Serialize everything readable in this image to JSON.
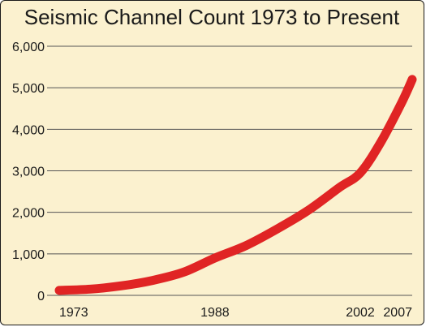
{
  "chart_data": {
    "type": "line",
    "title": "Seismic Channel Count 1973 to Present",
    "xlabel": "",
    "ylabel": "",
    "xlim": [
      1973,
      2007
    ],
    "ylim": [
      0,
      6000
    ],
    "x_ticks": [
      "1973",
      "1988",
      "2002",
      "2007"
    ],
    "y_ticks": [
      "0",
      "1,000",
      "2,000",
      "3,000",
      "4,000",
      "5,000",
      "6,000"
    ],
    "grid": "horizontal",
    "legend": "none",
    "series": [
      {
        "x": [
          1973,
          1976,
          1979,
          1982,
          1985,
          1988,
          1991,
          1994,
          1997,
          2000,
          2002,
          2004,
          2006,
          2007
        ],
        "y": [
          120,
          150,
          230,
          360,
          560,
          900,
          1200,
          1600,
          2050,
          2600,
          2950,
          3700,
          4650,
          5200
        ],
        "color": "#e02424"
      }
    ],
    "colors": {
      "background": "#fbf1cf",
      "line": "#e02424",
      "grid": "#555555",
      "text": "#1a1a1a"
    }
  }
}
